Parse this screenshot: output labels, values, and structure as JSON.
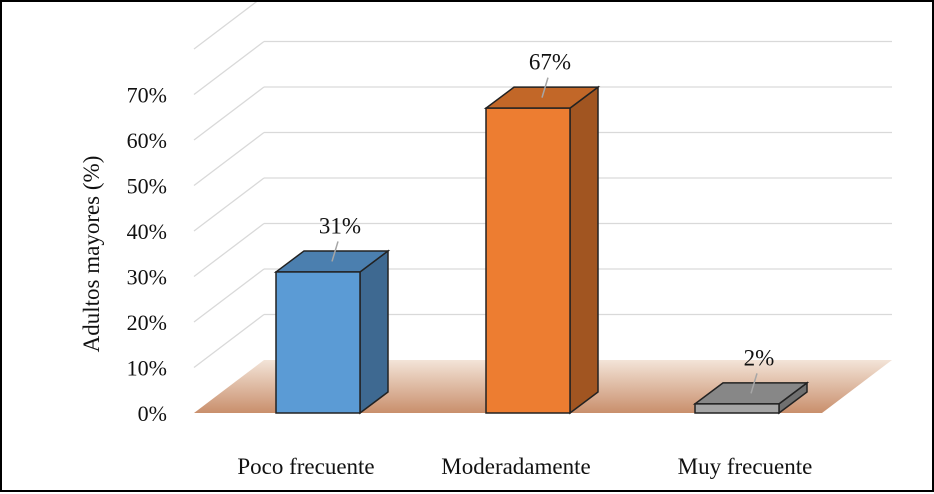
{
  "chart_data": {
    "type": "bar",
    "style": "3d-column",
    "categories": [
      "Poco frecuente",
      "Moderadamente",
      "Muy frecuente"
    ],
    "values": [
      31,
      67,
      2
    ],
    "data_labels": [
      "31%",
      "67%",
      "2%"
    ],
    "title": "",
    "xlabel": "",
    "ylabel": "Adultos mayores (%)",
    "ylim": [
      0,
      70
    ],
    "yticks": [
      "0%",
      "10%",
      "20%",
      "30%",
      "40%",
      "50%",
      "60%",
      "70%"
    ],
    "grid": true,
    "legend": "none",
    "colors": [
      "#5b9bd5",
      "#ed7d31",
      "#a5a5a5"
    ],
    "floor_color": "#d7a98a"
  }
}
